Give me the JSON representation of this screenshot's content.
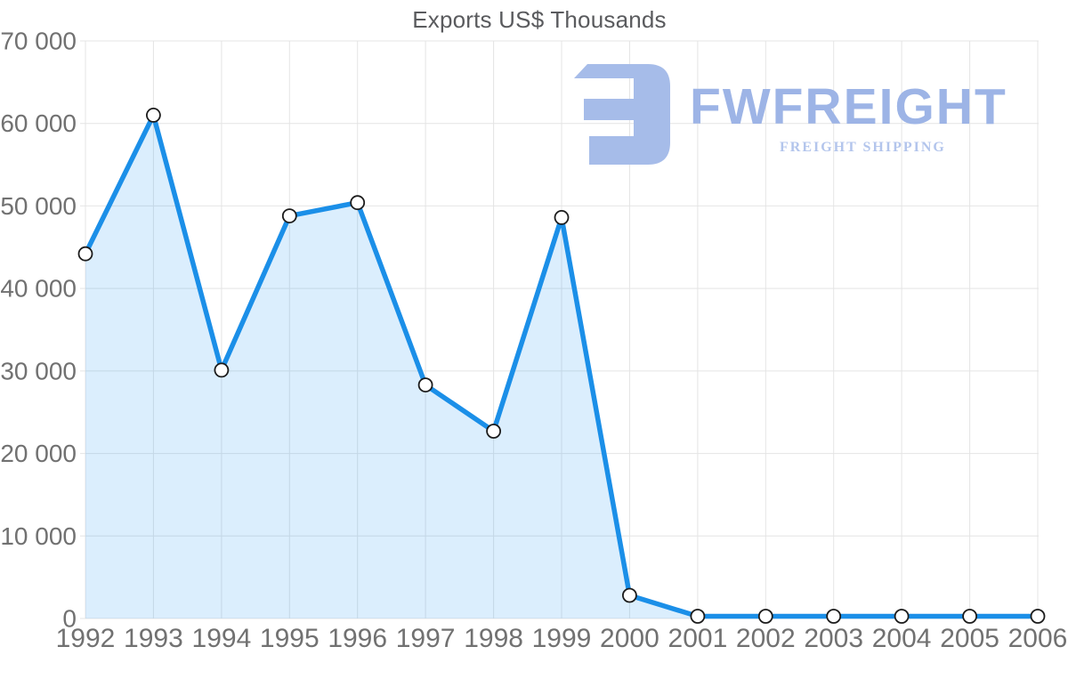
{
  "chart": {
    "title": "Exports US$ Thousands"
  },
  "watermark": {
    "brand": "FWFREIGHT",
    "tagline": "FREIGHT SHIPPING",
    "brand_color": "#9db4e6",
    "tagline_color": "#b3c5ec",
    "icon_color": "#a6bce9",
    "icon": "fwfreight-logo-icon"
  },
  "chart_data": {
    "type": "area",
    "title": "Exports US$ Thousands",
    "categories": [
      "1992",
      "1993",
      "1994",
      "1995",
      "1996",
      "1997",
      "1998",
      "1999",
      "2000",
      "2001",
      "2002",
      "2003",
      "2004",
      "2005",
      "2006"
    ],
    "series": [
      {
        "name": "Exports US$ Thousands",
        "values": [
          44200,
          61000,
          30100,
          48800,
          50400,
          28300,
          22700,
          48600,
          2800,
          0,
          0,
          0,
          0,
          0,
          0
        ]
      }
    ],
    "xlabel": "",
    "ylabel": "",
    "ylim": [
      0,
      70000
    ],
    "ytick_step": 10000,
    "ytick_labels": [
      "0",
      "10 000",
      "20 000",
      "30 000",
      "40 000",
      "50 000",
      "60 000",
      "70 000"
    ],
    "grid": true,
    "legend_position": "none",
    "marker_shape": "circle",
    "colors": {
      "line": "#1b8fe8",
      "fill": "rgba(33,150,243,0.16)",
      "marker_fill": "#ffffff",
      "marker_stroke": "#1c1c1c",
      "grid": "#e4e4e4",
      "axis_label": "#717171",
      "title": "#5a5b5e"
    }
  }
}
